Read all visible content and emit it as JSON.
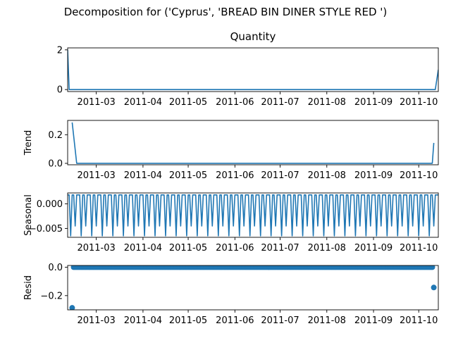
{
  "figure": {
    "title": "Decomposition for ('Cyprus', 'BREAD BIN DINER STYLE RED ')"
  },
  "chart_data": [
    {
      "type": "line",
      "title": "Quantity",
      "xlabel": "",
      "ylabel": "",
      "xlim": [
        "2011-02-10",
        "2011-10-14"
      ],
      "ylim": [
        -0.1,
        2.1
      ],
      "yticks": [
        0,
        2
      ],
      "xtick_labels": [
        "2011-03",
        "2011-04",
        "2011-05",
        "2011-06",
        "2011-07",
        "2011-08",
        "2011-09",
        "2011-10"
      ],
      "series": [
        {
          "x": [
            "2011-02-10",
            "2011-02-11",
            "2011-10-12",
            "2011-10-14"
          ],
          "values": [
            2.0,
            0,
            0,
            1.0
          ]
        }
      ],
      "grid": false
    },
    {
      "type": "line",
      "title": "",
      "xlabel": "",
      "ylabel": "Trend",
      "xlim": [
        "2011-02-10",
        "2011-10-14"
      ],
      "ylim": [
        -0.01,
        0.3
      ],
      "yticks": [
        0.0,
        0.2
      ],
      "ytick_labels": [
        "0.0",
        "0.2"
      ],
      "xtick_labels": [
        "2011-03",
        "2011-04",
        "2011-05",
        "2011-06",
        "2011-07",
        "2011-08",
        "2011-09",
        "2011-10"
      ],
      "series": [
        {
          "x": [
            "2011-02-13",
            "2011-02-16",
            "2011-10-10",
            "2011-10-11"
          ],
          "values": [
            0.286,
            0,
            0,
            0.143
          ]
        }
      ],
      "grid": false
    },
    {
      "type": "line",
      "title": "",
      "xlabel": "",
      "ylabel": "Seasonal",
      "xlim": [
        "2011-02-10",
        "2011-10-14"
      ],
      "ylim": [
        -0.0068,
        0.0022
      ],
      "yticks": [
        0.0,
        -0.005
      ],
      "ytick_labels": [
        "0.000",
        "−0.005"
      ],
      "xtick_labels": [
        "2011-03",
        "2011-04",
        "2011-05",
        "2011-06",
        "2011-07",
        "2011-08",
        "2011-09",
        "2011-10"
      ],
      "series": [
        {
          "start": "2011-02-10",
          "pattern": [
            0.0018,
            0.0018,
            -0.0065,
            0.0018,
            0.0018,
            -0.0045,
            0.0018
          ]
        }
      ],
      "grid": false
    },
    {
      "type": "scatter",
      "title": "",
      "xlabel": "",
      "ylabel": "Resid",
      "xlim": [
        "2011-02-10",
        "2011-10-14"
      ],
      "ylim": [
        -0.3,
        0.012
      ],
      "yticks": [
        0.0,
        -0.2
      ],
      "ytick_labels": [
        "0.0",
        "−0.2"
      ],
      "xtick_labels": [
        "2011-03",
        "2011-04",
        "2011-05",
        "2011-06",
        "2011-07",
        "2011-08",
        "2011-09",
        "2011-10"
      ],
      "series": [
        {
          "range": [
            "2011-02-13",
            "2011-10-11"
          ],
          "value": 0,
          "outliers": [
            {
              "x": "2011-02-13",
              "y": -0.286
            },
            {
              "x": "2011-10-11",
              "y": -0.143
            }
          ]
        }
      ],
      "grid": false
    }
  ]
}
